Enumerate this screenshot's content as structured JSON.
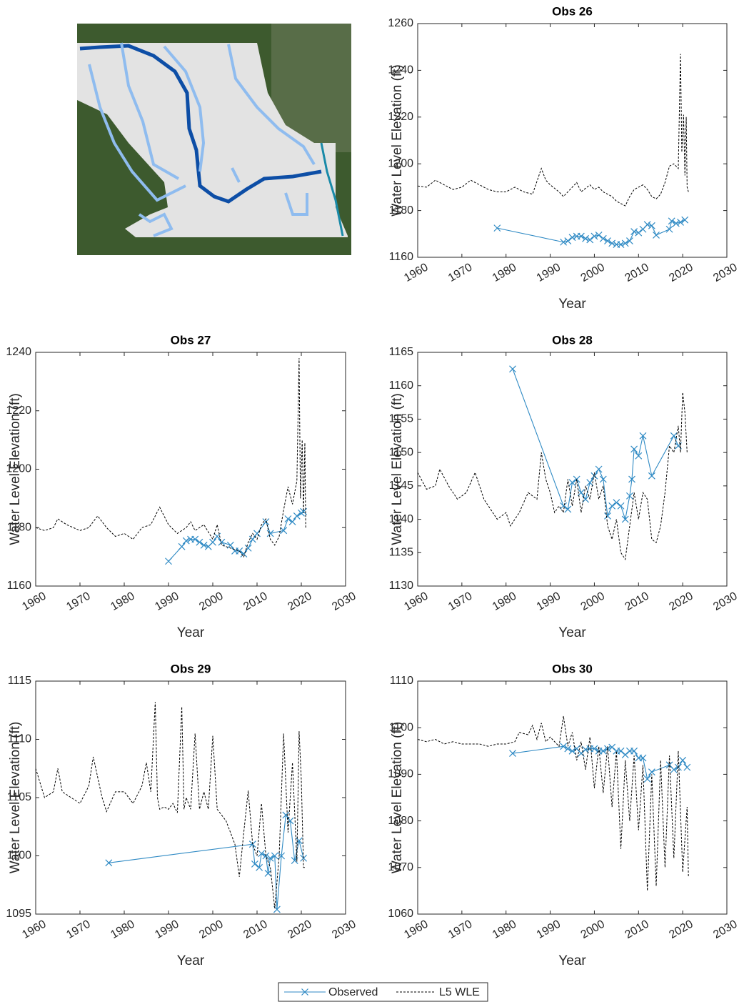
{
  "chart_data": [
    {
      "type": "line",
      "title": "Obs 26",
      "xlabel": "Year",
      "ylabel": "Water Level Elevation (ft)",
      "xlim": [
        1960,
        2030
      ],
      "xticks": [
        1960,
        1970,
        1980,
        1990,
        2000,
        2010,
        2020,
        2030
      ],
      "ylim": [
        1160,
        1260
      ],
      "yticks": [
        1160,
        1180,
        1200,
        1220,
        1240,
        1260
      ],
      "series": [
        {
          "name": "Observed",
          "color": "#2f8ac4",
          "marker": "x",
          "x": [
            1978,
            1993,
            1994,
            1995,
            1996,
            1997,
            1998,
            1999,
            2000,
            2001,
            2002,
            2003,
            2004,
            2005,
            2006,
            2007,
            2008,
            2009,
            2010,
            2011,
            2012,
            2013,
            2014,
            2017,
            2017.5,
            2018.5,
            2019.5,
            2020.5
          ],
          "values": [
            1172.5,
            1166.5,
            1167,
            1168.5,
            1169,
            1169,
            1168,
            1167.5,
            1169,
            1169.5,
            1168,
            1167,
            1166,
            1165.5,
            1165.5,
            1166,
            1167,
            1171,
            1170.5,
            1172,
            1174,
            1173.5,
            1169.5,
            1172,
            1175.5,
            1174.5,
            1175,
            1176
          ]
        },
        {
          "name": "L5 WLE",
          "color": "#000000",
          "dashed": true,
          "x": [
            1960,
            1962,
            1964,
            1966,
            1968,
            1970,
            1972,
            1974,
            1976,
            1978,
            1980,
            1982,
            1984,
            1986,
            1988,
            1989,
            1990,
            1992,
            1993,
            1995,
            1996,
            1997,
            1999,
            2000,
            2001,
            2002,
            2004,
            2005,
            2006,
            2007,
            2008,
            2009,
            2010,
            2011,
            2012,
            2013,
            2014,
            2015,
            2016,
            2017,
            2018,
            2019,
            2019.5,
            2019.8,
            2020.2,
            2020.5,
            2020.8,
            2021,
            2021.3
          ],
          "values": [
            1190.5,
            1190,
            1193,
            1191,
            1189,
            1190,
            1193,
            1191,
            1189,
            1188,
            1188,
            1190,
            1188,
            1187,
            1198,
            1193,
            1191,
            1188,
            1186,
            1190,
            1192,
            1188,
            1191,
            1189,
            1190,
            1188,
            1186,
            1184,
            1183,
            1182,
            1186,
            1189,
            1190,
            1191,
            1189,
            1186,
            1185,
            1187,
            1192,
            1199,
            1200,
            1198,
            1247,
            1205,
            1221,
            1195,
            1220,
            1190,
            1188
          ]
        }
      ]
    },
    {
      "type": "line",
      "title": "Obs 27",
      "xlabel": "Year",
      "ylabel": "Water Level Elevation (ft)",
      "xlim": [
        1960,
        2030
      ],
      "xticks": [
        1960,
        1970,
        1980,
        1990,
        2000,
        2010,
        2020,
        2030
      ],
      "ylim": [
        1160,
        1240
      ],
      "yticks": [
        1160,
        1180,
        1200,
        1220,
        1240
      ],
      "series": [
        {
          "name": "Observed",
          "color": "#2f8ac4",
          "marker": "x",
          "x": [
            1990,
            1993,
            1994,
            1995,
            1996,
            1997,
            1998,
            1999,
            2000,
            2001,
            2002,
            2004,
            2005,
            2006,
            2007,
            2008,
            2009,
            2010,
            2012,
            2013,
            2016,
            2017,
            2018,
            2019,
            2020,
            2020.5
          ],
          "values": [
            1168.5,
            1173.5,
            1175.5,
            1176,
            1176,
            1175,
            1174,
            1173.5,
            1175,
            1177,
            1175,
            1174,
            1172,
            1172,
            1171,
            1173,
            1176,
            1178,
            1182,
            1178,
            1179,
            1183,
            1182,
            1184,
            1185,
            1185.5
          ]
        },
        {
          "name": "L5 WLE",
          "color": "#000000",
          "dashed": true,
          "x": [
            1960,
            1962,
            1964,
            1965,
            1967,
            1970,
            1972,
            1974,
            1976,
            1978,
            1980,
            1982,
            1984,
            1986,
            1988,
            1990,
            1992,
            1994,
            1995,
            1996,
            1998,
            2000,
            2001,
            2002,
            2004,
            2006,
            2007,
            2008,
            2009,
            2010,
            2011,
            2012,
            2013,
            2014,
            2015,
            2016,
            2017,
            2018,
            2019,
            2019.5,
            2019.8,
            2020.2,
            2020.5,
            2020.8,
            2021
          ],
          "values": [
            1180,
            1179,
            1180,
            1183,
            1181,
            1179,
            1180,
            1184,
            1180,
            1177,
            1178,
            1176,
            1180,
            1181,
            1187,
            1181,
            1178,
            1180,
            1182,
            1179,
            1181,
            1176,
            1181,
            1174,
            1173,
            1172,
            1170,
            1175,
            1178,
            1176,
            1181,
            1183,
            1176,
            1174,
            1177,
            1186,
            1194,
            1188,
            1196,
            1238,
            1190,
            1210,
            1185,
            1209,
            1180
          ]
        }
      ]
    },
    {
      "type": "line",
      "title": "Obs 28",
      "xlabel": "Year",
      "ylabel": "Water Level Elevation (ft)",
      "xlim": [
        1960,
        2030
      ],
      "xticks": [
        1960,
        1970,
        1980,
        1990,
        2000,
        2010,
        2020,
        2030
      ],
      "ylim": [
        1130,
        1165
      ],
      "yticks": [
        1130,
        1135,
        1140,
        1145,
        1150,
        1155,
        1160,
        1165
      ],
      "series": [
        {
          "name": "Observed",
          "color": "#2f8ac4",
          "marker": "x",
          "x": [
            1981.5,
            1993,
            1994,
            1995,
            1996,
            1997,
            1998,
            1999,
            2000,
            2001,
            2002,
            2003,
            2004,
            2005,
            2006,
            2007,
            2008,
            2008.5,
            2009,
            2010,
            2011,
            2013,
            2018,
            2019
          ],
          "values": [
            1162.5,
            1142,
            1141.5,
            1145.5,
            1146,
            1144,
            1143,
            1145.5,
            1146.5,
            1147.5,
            1146,
            1140.5,
            1142,
            1142.5,
            1142,
            1140,
            1143.5,
            1146,
            1150.5,
            1149.5,
            1152.5,
            1146.5,
            1152.5,
            1151
          ]
        },
        {
          "name": "L5 WLE",
          "color": "#000000",
          "dashed": true,
          "x": [
            1960,
            1962,
            1964,
            1965,
            1967,
            1969,
            1971,
            1973,
            1975,
            1977,
            1978,
            1980,
            1981,
            1983,
            1985,
            1987,
            1988,
            1989,
            1990,
            1991,
            1992,
            1993,
            1994,
            1995,
            1996,
            1997,
            1998,
            1999,
            2000,
            2001,
            2002,
            2003,
            2004,
            2005,
            2006,
            2007,
            2008,
            2009,
            2010,
            2011,
            2012,
            2013,
            2014,
            2015,
            2016,
            2017,
            2018,
            2019,
            2019.5,
            2020,
            2020.5,
            2021
          ],
          "values": [
            1147,
            1144.5,
            1145,
            1147.5,
            1145,
            1143,
            1144,
            1147,
            1143,
            1141,
            1140,
            1141,
            1139,
            1141,
            1144,
            1143,
            1150,
            1146,
            1144,
            1141,
            1142,
            1141,
            1146,
            1142,
            1146,
            1141,
            1145,
            1143,
            1147,
            1143,
            1145,
            1139,
            1137,
            1140,
            1135,
            1134,
            1139,
            1144,
            1140,
            1144,
            1143,
            1137,
            1136.5,
            1139,
            1144,
            1151,
            1150,
            1154,
            1150,
            1159,
            1156,
            1150
          ]
        }
      ]
    },
    {
      "type": "line",
      "title": "Obs 29",
      "xlabel": "Year",
      "ylabel": "Water Level Elevation (ft)",
      "xlim": [
        1960,
        2030
      ],
      "xticks": [
        1960,
        1970,
        1980,
        1990,
        2000,
        2010,
        2020,
        2030
      ],
      "ylim": [
        1095,
        1115
      ],
      "yticks": [
        1095,
        1100,
        1105,
        1110,
        1115
      ],
      "series": [
        {
          "name": "Observed",
          "color": "#2f8ac4",
          "marker": "x",
          "x": [
            1976.5,
            2009,
            2009.5,
            2010.5,
            2011,
            2012,
            2012.5,
            2013,
            2014,
            2014.5,
            2015.5,
            2016.5,
            2017.5,
            2018.5,
            2019.5,
            2020.5
          ],
          "values": [
            1099.4,
            1101,
            1099.3,
            1099,
            1100.2,
            1100,
            1098.5,
            1099.8,
            1100,
            1095.4,
            1100,
            1103.5,
            1103,
            1099.6,
            1101.3,
            1099.8
          ]
        },
        {
          "name": "L5 WLE",
          "color": "#000000",
          "dashed": true,
          "x": [
            1960,
            1962,
            1964,
            1965,
            1966,
            1968,
            1970,
            1972,
            1973,
            1975,
            1976,
            1978,
            1980,
            1982,
            1984,
            1985,
            1986,
            1987,
            1987.5,
            1988,
            1989,
            1990,
            1991,
            1992,
            1993,
            1993.5,
            1994,
            1995,
            1996,
            1997,
            1998,
            1999,
            2000,
            2001,
            2002,
            2003,
            2004,
            2005,
            2006,
            2007,
            2008,
            2009,
            2010,
            2011,
            2012,
            2013,
            2014,
            2015,
            2016,
            2017,
            2018,
            2019,
            2019.5,
            2020,
            2020.5,
            2021
          ],
          "values": [
            1107.5,
            1105,
            1105.5,
            1107.5,
            1105.5,
            1105,
            1104.5,
            1106,
            1108.5,
            1105,
            1103.8,
            1105.5,
            1105.5,
            1104.5,
            1106,
            1108,
            1105.5,
            1113.2,
            1105,
            1104,
            1104.2,
            1104,
            1104.5,
            1103.7,
            1112.8,
            1104,
            1105,
            1104,
            1110.5,
            1104,
            1105.5,
            1104,
            1110.3,
            1104,
            1103.5,
            1103,
            1102,
            1101,
            1098.2,
            1102,
            1105.6,
            1101,
            1100,
            1104.5,
            1100,
            1099,
            1095.5,
            1100,
            1110.5,
            1102,
            1108,
            1099.5,
            1110.7,
            1106.5,
            1099,
            1099
          ]
        }
      ]
    },
    {
      "type": "line",
      "title": "Obs 30",
      "xlabel": "Year",
      "ylabel": "Water Level Elevation (ft)",
      "xlim": [
        1960,
        2030
      ],
      "xticks": [
        1960,
        1970,
        1980,
        1990,
        2000,
        2010,
        2020,
        2030
      ],
      "ylim": [
        1060,
        1110
      ],
      "yticks": [
        1060,
        1070,
        1080,
        1090,
        1100,
        1110
      ],
      "series": [
        {
          "name": "Observed",
          "color": "#2f8ac4",
          "marker": "x",
          "x": [
            1981.5,
            1993,
            1994,
            1995,
            1996,
            1997,
            1998,
            1999,
            2000,
            2001,
            2002,
            2003,
            2004,
            2005,
            2006,
            2007,
            2008,
            2009,
            2010,
            2011,
            2012,
            2013,
            2017,
            2018,
            2019,
            2020,
            2021
          ],
          "values": [
            1094.5,
            1096,
            1095.5,
            1095,
            1095.5,
            1094.5,
            1095.3,
            1095.5,
            1095.5,
            1095,
            1095,
            1095.5,
            1095.8,
            1095,
            1095,
            1094.2,
            1095,
            1095,
            1093.5,
            1093.5,
            1089,
            1090.5,
            1092,
            1091,
            1091.5,
            1093,
            1091.5
          ]
        },
        {
          "name": "L5 WLE",
          "color": "#000000",
          "dashed": true,
          "x": [
            1960,
            1962,
            1964,
            1966,
            1968,
            1970,
            1972,
            1974,
            1976,
            1978,
            1980,
            1982,
            1983,
            1985,
            1986,
            1987,
            1988,
            1989,
            1990,
            1991,
            1992,
            1993,
            1994,
            1995,
            1996,
            1997,
            1998,
            1999,
            2000,
            2001,
            2002,
            2003,
            2004,
            2005,
            2006,
            2007,
            2008,
            2009,
            2010,
            2011,
            2012,
            2013,
            2014,
            2015,
            2016,
            2017,
            2018,
            2019,
            2020,
            2021,
            2021.3
          ],
          "values": [
            1097.5,
            1097,
            1097.5,
            1096.5,
            1097,
            1096.5,
            1096.5,
            1096.5,
            1096,
            1096.5,
            1096.5,
            1097,
            1099,
            1098.5,
            1100.5,
            1097.5,
            1101,
            1097,
            1098,
            1097,
            1096,
            1102.5,
            1096,
            1099,
            1093,
            1097,
            1091,
            1098,
            1087,
            1096,
            1086,
            1096,
            1083,
            1095,
            1074,
            1093,
            1080,
            1094,
            1078,
            1092,
            1065,
            1090,
            1066,
            1093,
            1070,
            1094,
            1072,
            1095,
            1069,
            1083,
            1068
          ]
        }
      ]
    }
  ]
}
